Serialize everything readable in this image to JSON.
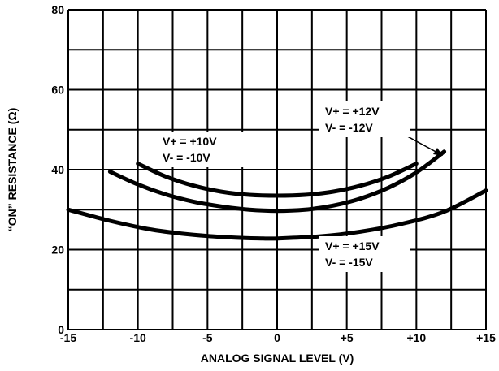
{
  "chart_data": {
    "type": "line",
    "xlabel": "ANALOG SIGNAL LEVEL (V)",
    "ylabel": "“ON” RESISTANCE (Ω)",
    "xlim": [
      -15,
      15
    ],
    "ylim": [
      0,
      80
    ],
    "x_gridlines": [
      -15,
      -12.5,
      -10,
      -7.5,
      -5,
      -2.5,
      0,
      2.5,
      5,
      7.5,
      10,
      12.5,
      15
    ],
    "y_gridlines": [
      0,
      10,
      20,
      30,
      40,
      50,
      60,
      70,
      80
    ],
    "grid": true,
    "x_ticks": [
      {
        "value": -15,
        "label": "-15"
      },
      {
        "value": -10,
        "label": "-10"
      },
      {
        "value": -5,
        "label": "-5"
      },
      {
        "value": 0,
        "label": "0"
      },
      {
        "value": 5,
        "label": "+5"
      },
      {
        "value": 10,
        "label": "+10"
      },
      {
        "value": 15,
        "label": "+15"
      }
    ],
    "y_ticks": [
      {
        "value": 0,
        "label": "0"
      },
      {
        "value": 20,
        "label": "20"
      },
      {
        "value": 40,
        "label": "40"
      },
      {
        "value": 60,
        "label": "60"
      },
      {
        "value": 80,
        "label": "80"
      }
    ],
    "series": [
      {
        "name": "V+ = +10V / V- = -10V",
        "x": [
          -10,
          -8,
          -6,
          -4,
          -2,
          0,
          2,
          4,
          6,
          8,
          10
        ],
        "y": [
          41.5,
          38.3,
          36.0,
          34.5,
          33.7,
          33.5,
          33.7,
          34.5,
          36.0,
          38.3,
          41.5
        ]
      },
      {
        "name": "V+ = +12V / V- = -12V",
        "x": [
          -12,
          -10,
          -8,
          -6,
          -4,
          -2,
          0,
          2,
          4,
          6,
          8,
          10,
          12
        ],
        "y": [
          39.5,
          36.3,
          33.8,
          32.0,
          30.8,
          30.0,
          29.7,
          30.0,
          31.0,
          32.8,
          35.5,
          39.3,
          44.5
        ]
      },
      {
        "name": "V+ = +15V / V- = -15V",
        "x": [
          -15,
          -12,
          -9,
          -6,
          -3,
          -1,
          0,
          3,
          6,
          9,
          12,
          15
        ],
        "y": [
          30.0,
          27.2,
          25.0,
          23.7,
          23.0,
          22.8,
          22.8,
          23.3,
          24.5,
          26.5,
          29.5,
          34.8
        ]
      }
    ],
    "annotations": [
      {
        "id": "10v",
        "lines": [
          "V+ = +10V",
          "V- = -10V"
        ]
      },
      {
        "id": "12v",
        "lines": [
          "V+ = +12V",
          "V- = -12V"
        ]
      },
      {
        "id": "15v",
        "lines": [
          "V+ = +15V",
          "V- = -15V"
        ]
      }
    ]
  }
}
